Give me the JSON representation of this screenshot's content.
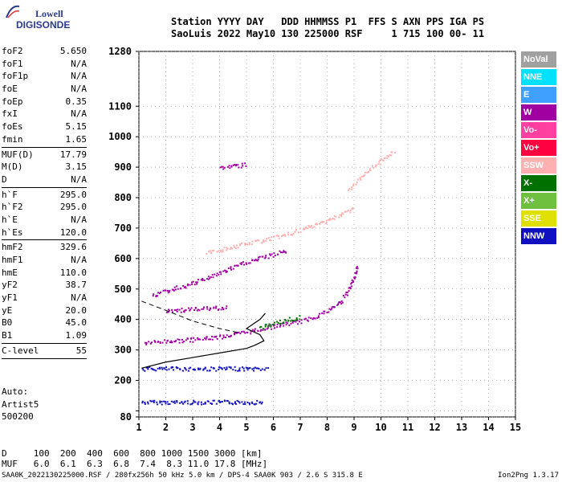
{
  "logo": {
    "line1": "Lowell",
    "line2": "DIGISONDE"
  },
  "header": {
    "line1": "Station YYYY DAY   DDD HHMMSS P1  FFS S AXN PPS IGA PS",
    "line2": "SaoLuis 2022 May10 130 225000 RSF     1 715 100 00- 11"
  },
  "params": {
    "group1": [
      {
        "name": "foF2",
        "value": "5.650"
      },
      {
        "name": "foF1",
        "value": "N/A"
      },
      {
        "name": "foF1p",
        "value": "N/A"
      },
      {
        "name": "foE",
        "value": "N/A"
      },
      {
        "name": "foEp",
        "value": "0.35"
      },
      {
        "name": "fxI",
        "value": "N/A"
      },
      {
        "name": "foEs",
        "value": "5.15"
      },
      {
        "name": "fmin",
        "value": "1.65"
      }
    ],
    "group2": [
      {
        "name": "MUF(D)",
        "value": "17.79"
      },
      {
        "name": "M(D)",
        "value": "3.15"
      },
      {
        "name": "D",
        "value": "N/A"
      }
    ],
    "group3": [
      {
        "name": "h`F",
        "value": "295.0"
      },
      {
        "name": "h`F2",
        "value": "295.0"
      },
      {
        "name": "h`E",
        "value": "N/A"
      },
      {
        "name": "h`Es",
        "value": "120.0"
      }
    ],
    "group4": [
      {
        "name": "hmF2",
        "value": "329.6"
      },
      {
        "name": "hmF1",
        "value": "N/A"
      },
      {
        "name": "hmE",
        "value": "110.0"
      },
      {
        "name": "yF2",
        "value": "38.7"
      },
      {
        "name": "yF1",
        "value": "N/A"
      },
      {
        "name": "yE",
        "value": "20.0"
      },
      {
        "name": "B0",
        "value": "45.0"
      },
      {
        "name": "B1",
        "value": "1.09"
      }
    ],
    "group5": [
      {
        "name": "C-level",
        "value": "55"
      }
    ]
  },
  "auto": {
    "line1": "Auto:",
    "line2": "Artist5",
    "line3": "500200"
  },
  "legend": [
    {
      "label": "NoVal",
      "color": "#a0a0a0"
    },
    {
      "label": "NNE",
      "color": "#00e0ff"
    },
    {
      "label": "E",
      "color": "#40a0ff"
    },
    {
      "label": "W",
      "color": "#a000a0"
    },
    {
      "label": "Vo-",
      "color": "#ff40a0"
    },
    {
      "label": "Vo+",
      "color": "#ff0040"
    },
    {
      "label": "SSW",
      "color": "#ffb0b0"
    },
    {
      "label": "X-",
      "color": "#007000"
    },
    {
      "label": "X+",
      "color": "#70c040"
    },
    {
      "label": "SSE",
      "color": "#e0e000"
    },
    {
      "label": "NNW",
      "color": "#1010c0"
    }
  ],
  "dmuf": {
    "d_line": "D     100  200  400  600  800 1000 1500 3000 [km]",
    "muf_line": "MUF   6.0  6.1  6.3  6.8  7.4  8.3 11.0 17.8 [MHz]"
  },
  "footer": "SAA0K_2022130225000.RSF / 280fx256h 50 kHz 5.0 km / DPS-4 SAA0K 903 / 2.6 S 315.8 E",
  "version": "Ion2Png 1.3.17",
  "chart_data": {
    "type": "scatter",
    "title": "",
    "xlabel": "",
    "ylabel": "",
    "xlim": [
      1,
      15
    ],
    "ylim": [
      80,
      1280
    ],
    "x_ticks": [
      "1",
      "2",
      "3",
      "4",
      "5",
      "6",
      "7",
      "8",
      "9",
      "10",
      "11",
      "12",
      "13",
      "14",
      "15"
    ],
    "y_ticks": [
      {
        "v": 80,
        "label": "80"
      },
      {
        "v": 100,
        "label": ""
      },
      {
        "v": 200,
        "label": "200"
      },
      {
        "v": 300,
        "label": "300"
      },
      {
        "v": 400,
        "label": "400"
      },
      {
        "v": 500,
        "label": "500"
      },
      {
        "v": 600,
        "label": "600"
      },
      {
        "v": 700,
        "label": "700"
      },
      {
        "v": 800,
        "label": "800"
      },
      {
        "v": 900,
        "label": "900"
      },
      {
        "v": 1000,
        "label": "1000"
      },
      {
        "v": 1100,
        "label": "1100"
      },
      {
        "v": 1280,
        "label": "1280"
      }
    ],
    "grid": true,
    "echo_traces": [
      {
        "name": "E-sporadic",
        "color": "#1010c0",
        "points": [
          [
            1.1,
            130
          ],
          [
            2,
            130
          ],
          [
            3,
            130
          ],
          [
            4,
            130
          ],
          [
            5,
            130
          ],
          [
            5.6,
            130
          ]
        ]
      },
      {
        "name": "Es 2nd",
        "color": "#1010c0",
        "points": [
          [
            1.1,
            240
          ],
          [
            2,
            240
          ],
          [
            3,
            240
          ],
          [
            4,
            240
          ],
          [
            5,
            240
          ],
          [
            5.8,
            240
          ]
        ]
      },
      {
        "name": "F trace",
        "color": "#a000a0",
        "points": [
          [
            1.2,
            325
          ],
          [
            2,
            330
          ],
          [
            3,
            335
          ],
          [
            4,
            345
          ],
          [
            5,
            360
          ],
          [
            6,
            380
          ],
          [
            7,
            395
          ],
          [
            7.5,
            410
          ],
          [
            8,
            430
          ],
          [
            8.5,
            460
          ],
          [
            8.8,
            500
          ],
          [
            9.0,
            540
          ],
          [
            9.1,
            580
          ]
        ]
      },
      {
        "name": "F trace X",
        "color": "#007000",
        "points": [
          [
            5.5,
            375
          ],
          [
            6,
            388
          ],
          [
            6.5,
            400
          ],
          [
            7,
            410
          ]
        ]
      },
      {
        "name": "2F",
        "color": "#a000a0",
        "points": [
          [
            1.5,
            480
          ],
          [
            2,
            495
          ],
          [
            3,
            520
          ],
          [
            4,
            555
          ],
          [
            5,
            590
          ],
          [
            6,
            615
          ],
          [
            6.5,
            630
          ]
        ]
      },
      {
        "name": "2F high",
        "color": "#ffb0b0",
        "points": [
          [
            3.5,
            620
          ],
          [
            4.5,
            640
          ],
          [
            5.5,
            660
          ],
          [
            6.5,
            680
          ],
          [
            7.5,
            710
          ],
          [
            8.5,
            745
          ],
          [
            9,
            770
          ]
        ]
      },
      {
        "name": "3F",
        "color": "#a000a0",
        "points": [
          [
            4,
            900
          ],
          [
            5,
            910
          ]
        ]
      },
      {
        "name": "3F high",
        "color": "#ffb0b0",
        "points": [
          [
            8.8,
            830
          ],
          [
            9.3,
            870
          ],
          [
            9.8,
            910
          ],
          [
            10.2,
            940
          ],
          [
            10.5,
            950
          ]
        ]
      },
      {
        "name": "Es multi",
        "color": "#a000a0",
        "points": [
          [
            2,
            430
          ],
          [
            3,
            435
          ],
          [
            4,
            440
          ],
          [
            4.3,
            445
          ]
        ]
      }
    ],
    "profile_line": {
      "color": "#000000",
      "points": [
        [
          1.1,
          240
        ],
        [
          2,
          260
        ],
        [
          3,
          275
        ],
        [
          4,
          290
        ],
        [
          5,
          305
        ],
        [
          5.3,
          315
        ],
        [
          5.65,
          330
        ],
        [
          5.5,
          350
        ],
        [
          5,
          370
        ],
        [
          5.5,
          400
        ],
        [
          5.7,
          420
        ]
      ]
    },
    "dashed_line": {
      "color": "#000000",
      "points": [
        [
          1.1,
          460
        ],
        [
          2,
          430
        ],
        [
          3,
          395
        ],
        [
          4,
          370
        ],
        [
          4.8,
          355
        ]
      ]
    }
  }
}
